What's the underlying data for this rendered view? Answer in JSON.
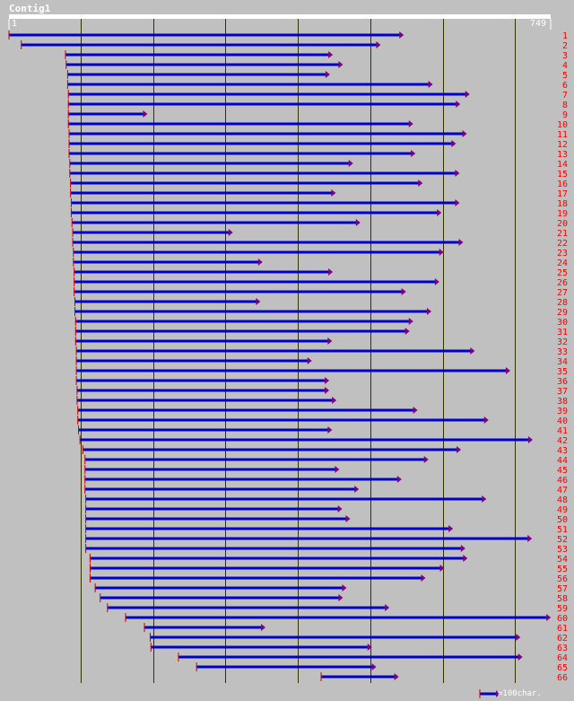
{
  "title": "Contig1",
  "scale": {
    "start_label": "1",
    "end_label": "749"
  },
  "legend_text": "=100char.",
  "colors": {
    "background": "#c0c0c0",
    "bar": "#0000cc",
    "arrow": "#800080",
    "label": "#ff0000",
    "scale": "#ffffff",
    "grid": "#333300"
  },
  "chart_data": {
    "type": "diagram",
    "title": "Contig1",
    "contig_length": 749,
    "grid_interval": 100,
    "reads": [
      {
        "id": "1",
        "start": 1,
        "end": 545
      },
      {
        "id": "2",
        "start": 18,
        "end": 513
      },
      {
        "id": "3",
        "start": 79,
        "end": 447
      },
      {
        "id": "4",
        "start": 80,
        "end": 461
      },
      {
        "id": "5",
        "start": 82,
        "end": 443
      },
      {
        "id": "6",
        "start": 82,
        "end": 585
      },
      {
        "id": "7",
        "start": 83,
        "end": 636
      },
      {
        "id": "8",
        "start": 83,
        "end": 623
      },
      {
        "id": "9",
        "start": 83,
        "end": 191
      },
      {
        "id": "10",
        "start": 83,
        "end": 558
      },
      {
        "id": "11",
        "start": 84,
        "end": 632
      },
      {
        "id": "12",
        "start": 84,
        "end": 617
      },
      {
        "id": "13",
        "start": 84,
        "end": 561
      },
      {
        "id": "14",
        "start": 85,
        "end": 475
      },
      {
        "id": "15",
        "start": 85,
        "end": 622
      },
      {
        "id": "16",
        "start": 86,
        "end": 571
      },
      {
        "id": "17",
        "start": 86,
        "end": 451
      },
      {
        "id": "18",
        "start": 87,
        "end": 622
      },
      {
        "id": "19",
        "start": 87,
        "end": 597
      },
      {
        "id": "20",
        "start": 88,
        "end": 485
      },
      {
        "id": "21",
        "start": 89,
        "end": 309
      },
      {
        "id": "22",
        "start": 89,
        "end": 627
      },
      {
        "id": "23",
        "start": 90,
        "end": 600
      },
      {
        "id": "24",
        "start": 90,
        "end": 350
      },
      {
        "id": "25",
        "start": 91,
        "end": 447
      },
      {
        "id": "26",
        "start": 91,
        "end": 594
      },
      {
        "id": "27",
        "start": 91,
        "end": 548
      },
      {
        "id": "28",
        "start": 92,
        "end": 347
      },
      {
        "id": "29",
        "start": 92,
        "end": 583
      },
      {
        "id": "30",
        "start": 93,
        "end": 558
      },
      {
        "id": "31",
        "start": 93,
        "end": 553
      },
      {
        "id": "32",
        "start": 93,
        "end": 446
      },
      {
        "id": "33",
        "start": 94,
        "end": 643
      },
      {
        "id": "34",
        "start": 94,
        "end": 418
      },
      {
        "id": "35",
        "start": 94,
        "end": 692
      },
      {
        "id": "36",
        "start": 94,
        "end": 442
      },
      {
        "id": "37",
        "start": 95,
        "end": 442
      },
      {
        "id": "38",
        "start": 95,
        "end": 452
      },
      {
        "id": "39",
        "start": 96,
        "end": 564
      },
      {
        "id": "40",
        "start": 96,
        "end": 662
      },
      {
        "id": "41",
        "start": 97,
        "end": 446
      },
      {
        "id": "42",
        "start": 99,
        "end": 723
      },
      {
        "id": "43",
        "start": 103,
        "end": 624
      },
      {
        "id": "44",
        "start": 106,
        "end": 579
      },
      {
        "id": "45",
        "start": 106,
        "end": 456
      },
      {
        "id": "46",
        "start": 106,
        "end": 542
      },
      {
        "id": "47",
        "start": 106,
        "end": 483
      },
      {
        "id": "48",
        "start": 107,
        "end": 659
      },
      {
        "id": "49",
        "start": 107,
        "end": 460
      },
      {
        "id": "50",
        "start": 107,
        "end": 471
      },
      {
        "id": "51",
        "start": 107,
        "end": 613
      },
      {
        "id": "52",
        "start": 107,
        "end": 722
      },
      {
        "id": "53",
        "start": 107,
        "end": 630
      },
      {
        "id": "54",
        "start": 113,
        "end": 633
      },
      {
        "id": "55",
        "start": 113,
        "end": 601
      },
      {
        "id": "56",
        "start": 113,
        "end": 575
      },
      {
        "id": "57",
        "start": 120,
        "end": 466
      },
      {
        "id": "58",
        "start": 127,
        "end": 461
      },
      {
        "id": "59",
        "start": 137,
        "end": 525
      },
      {
        "id": "60",
        "start": 162,
        "end": 748
      },
      {
        "id": "61",
        "start": 188,
        "end": 354
      },
      {
        "id": "62",
        "start": 196,
        "end": 706
      },
      {
        "id": "63",
        "start": 197,
        "end": 501
      },
      {
        "id": "64",
        "start": 235,
        "end": 709
      },
      {
        "id": "65",
        "start": 260,
        "end": 507
      },
      {
        "id": "66",
        "start": 432,
        "end": 538
      }
    ]
  }
}
